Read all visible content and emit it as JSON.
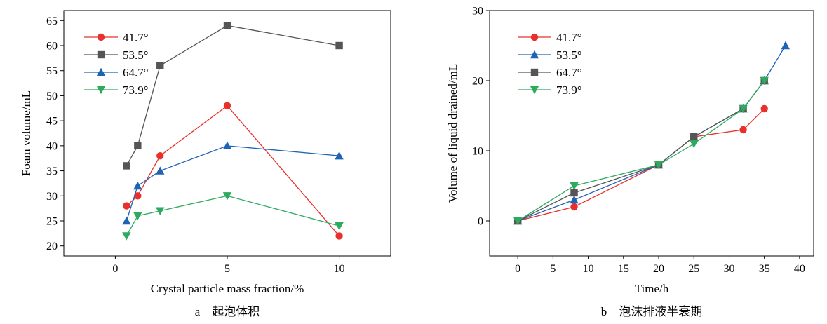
{
  "chart_data": [
    {
      "type": "line",
      "xlabel": "Crystal particle mass fraction/%",
      "ylabel": "Foam volume/mL",
      "caption": "a　起泡体积",
      "xlim": [
        -2.3,
        12.3
      ],
      "ylim": [
        18,
        67
      ],
      "xticks": [
        0,
        5,
        10
      ],
      "yticks": [
        20,
        25,
        30,
        35,
        40,
        45,
        50,
        55,
        60,
        65
      ],
      "grid": false,
      "legend": "top-left",
      "series": [
        {
          "name": "41.7°",
          "color": "#e8302c",
          "marker": "circle",
          "x": [
            0.5,
            1,
            2,
            5,
            10
          ],
          "y": [
            28,
            30,
            38,
            48,
            22
          ]
        },
        {
          "name": "53.5°",
          "color": "#555555",
          "marker": "square",
          "x": [
            0.5,
            1,
            2,
            5,
            10
          ],
          "y": [
            36,
            40,
            56,
            64,
            60
          ]
        },
        {
          "name": "64.7°",
          "color": "#1f63b5",
          "marker": "triangle-up",
          "x": [
            0.5,
            1,
            2,
            5,
            10
          ],
          "y": [
            25,
            32,
            35,
            40,
            38
          ]
        },
        {
          "name": "73.9°",
          "color": "#2eaa5f",
          "marker": "triangle-down",
          "x": [
            0.5,
            1,
            2,
            5,
            10
          ],
          "y": [
            22,
            26,
            27,
            30,
            24
          ]
        }
      ]
    },
    {
      "type": "line",
      "xlabel": "Time/h",
      "ylabel": "Volume of liquid drained/mL",
      "caption": "b　泡沫排液半衰期",
      "xlim": [
        -4,
        42
      ],
      "ylim": [
        -5,
        30
      ],
      "xticks": [
        0,
        5,
        10,
        15,
        20,
        25,
        30,
        35,
        40
      ],
      "yticks": [
        0,
        10,
        20,
        30
      ],
      "grid": false,
      "legend": "top-left",
      "series": [
        {
          "name": "41.7°",
          "color": "#e8302c",
          "marker": "circle",
          "x": [
            0,
            8,
            20,
            25,
            32,
            35
          ],
          "y": [
            0,
            2,
            8,
            12,
            13,
            16
          ]
        },
        {
          "name": "53.5°",
          "color": "#1f63b5",
          "marker": "triangle-up",
          "x": [
            0,
            8,
            20,
            25,
            32,
            35,
            38
          ],
          "y": [
            0,
            3,
            8,
            12,
            16,
            20,
            25
          ]
        },
        {
          "name": "64.7°",
          "color": "#555555",
          "marker": "square",
          "x": [
            0,
            8,
            20,
            25,
            32,
            35
          ],
          "y": [
            0,
            4,
            8,
            12,
            16,
            20
          ]
        },
        {
          "name": "73.9°",
          "color": "#2eaa5f",
          "marker": "triangle-down",
          "x": [
            0,
            8,
            20,
            25,
            32,
            35
          ],
          "y": [
            0,
            5,
            8,
            11,
            16,
            20
          ]
        }
      ]
    }
  ]
}
